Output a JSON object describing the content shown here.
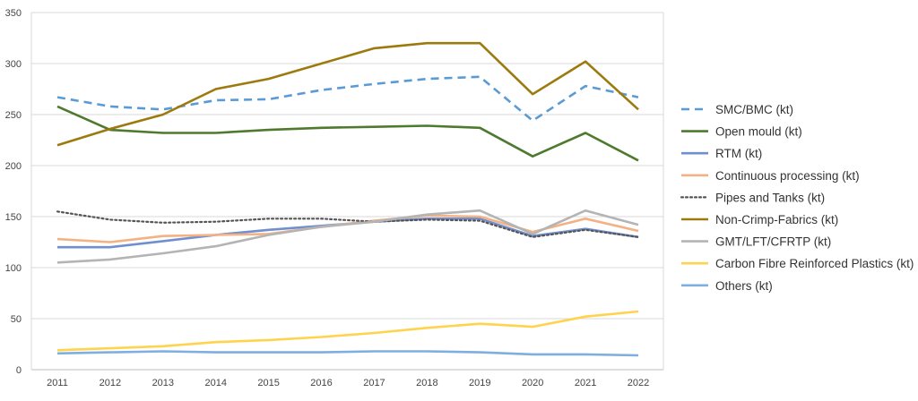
{
  "chart_data": {
    "type": "line",
    "title": "",
    "xlabel": "",
    "ylabel": "",
    "x": [
      "2011",
      "2012",
      "2013",
      "2014",
      "2015",
      "2016",
      "2017",
      "2018",
      "2019",
      "2020",
      "2021",
      "2022"
    ],
    "ylim": [
      0,
      350
    ],
    "yticks": [
      "0",
      "50",
      "100",
      "150",
      "200",
      "250",
      "300",
      "350"
    ],
    "grid": true,
    "legend_position": "right",
    "series": [
      {
        "name": "SMC/BMC (kt)",
        "color": "#5B9BD5",
        "style": "dashed",
        "values": [
          267,
          258,
          255,
          264,
          265,
          274,
          280,
          285,
          287,
          244,
          278,
          267
        ]
      },
      {
        "name": "Open mould (kt)",
        "color": "#4E7A2E",
        "style": "solid",
        "values": [
          258,
          235,
          232,
          232,
          235,
          237,
          238,
          239,
          237,
          209,
          232,
          205
        ]
      },
      {
        "name": "RTM (kt)",
        "color": "#6F8FCF",
        "style": "solid",
        "values": [
          120,
          120,
          126,
          132,
          137,
          141,
          145,
          148,
          148,
          131,
          138,
          130
        ]
      },
      {
        "name": "Continuous processing (kt)",
        "color": "#F4B183",
        "style": "solid",
        "values": [
          128,
          125,
          131,
          132,
          133,
          140,
          146,
          151,
          150,
          135,
          148,
          136
        ]
      },
      {
        "name": "Pipes and Tanks (kt)",
        "color": "#555555",
        "style": "dotted",
        "values": [
          155,
          147,
          144,
          145,
          148,
          148,
          145,
          147,
          146,
          130,
          137,
          130
        ]
      },
      {
        "name": "Non-Crimp-Fabrics (kt)",
        "color": "#9C7A0E",
        "style": "solid",
        "values": [
          220,
          236,
          250,
          275,
          285,
          300,
          315,
          320,
          320,
          270,
          302,
          255
        ]
      },
      {
        "name": "GMT/LFT/CFRTP (kt)",
        "color": "#B4B4B4",
        "style": "solid",
        "values": [
          105,
          108,
          114,
          121,
          132,
          140,
          145,
          152,
          156,
          133,
          156,
          142
        ]
      },
      {
        "name": "Carbon Fibre Reinforced Plastics (kt)",
        "color": "#FFD34D",
        "style": "solid",
        "values": [
          19,
          21,
          23,
          27,
          29,
          32,
          36,
          41,
          45,
          42,
          52,
          57
        ]
      },
      {
        "name": "Others (kt)",
        "color": "#7FAEE0",
        "style": "solid",
        "values": [
          16,
          17,
          18,
          17,
          17,
          17,
          18,
          18,
          17,
          15,
          15,
          14
        ]
      }
    ]
  }
}
